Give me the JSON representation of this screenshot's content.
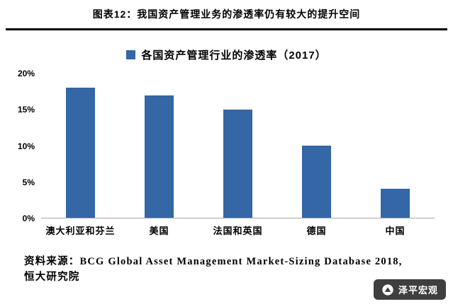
{
  "header": {
    "title": "图表12：我国资产管理业务的渗透率仍有较大的提升空间"
  },
  "chart_data": {
    "type": "bar",
    "title": "各国资产管理行业的渗透率（2017）",
    "categories": [
      "澳大利亚和芬兰",
      "美国",
      "法国和英国",
      "德国",
      "中国"
    ],
    "values": [
      18,
      17,
      15,
      10,
      4
    ],
    "xlabel": "",
    "ylabel": "",
    "ylim": [
      0,
      20
    ],
    "ytick_step": 5,
    "ytick_suffix": "%",
    "grid": false,
    "legend_position": "top-center",
    "bar_color": "#3566A5"
  },
  "footer": {
    "source_label": "资料来源：",
    "source_line1": "BCG Global Asset Management Market-Sizing Database 2018,",
    "source_line2": "恒大研究院",
    "watermark": "泽平宏观"
  }
}
